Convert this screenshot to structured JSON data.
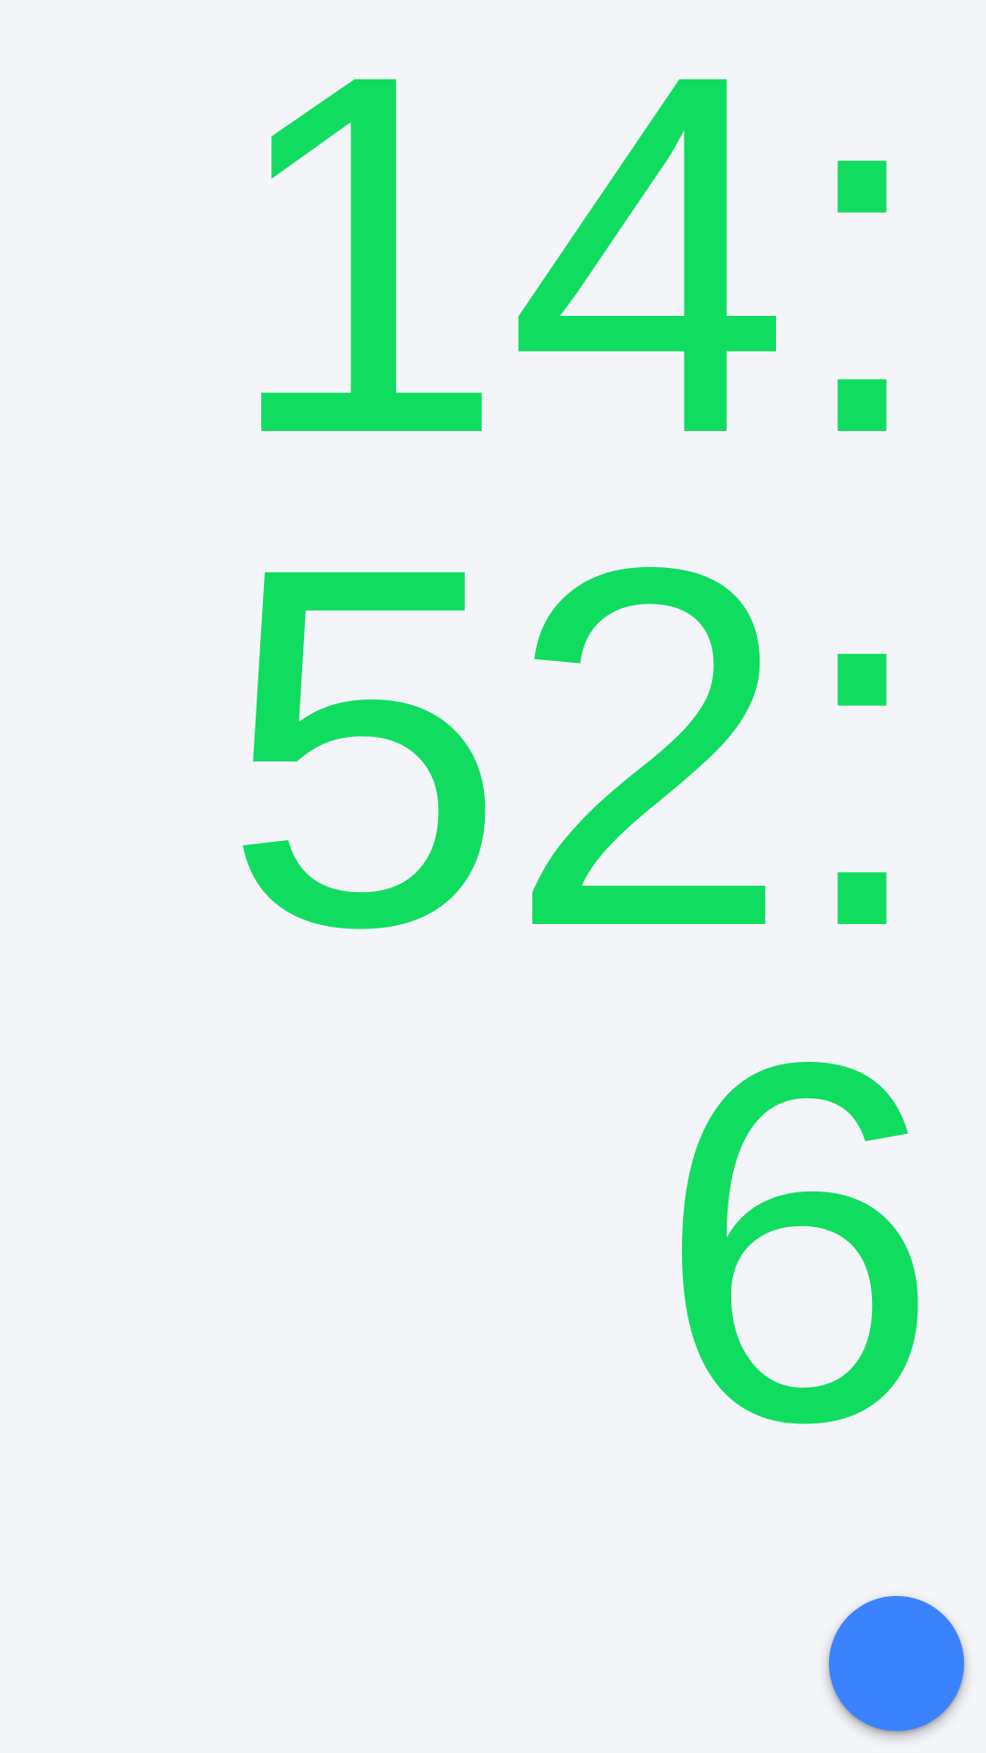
{
  "clock": {
    "lines": [
      "14:",
      "52:",
      "6"
    ],
    "color": "#10dd60"
  },
  "fab": {
    "color": "#3b82ff",
    "icon": "circle-fab"
  },
  "background_color": "#f3f5f9"
}
